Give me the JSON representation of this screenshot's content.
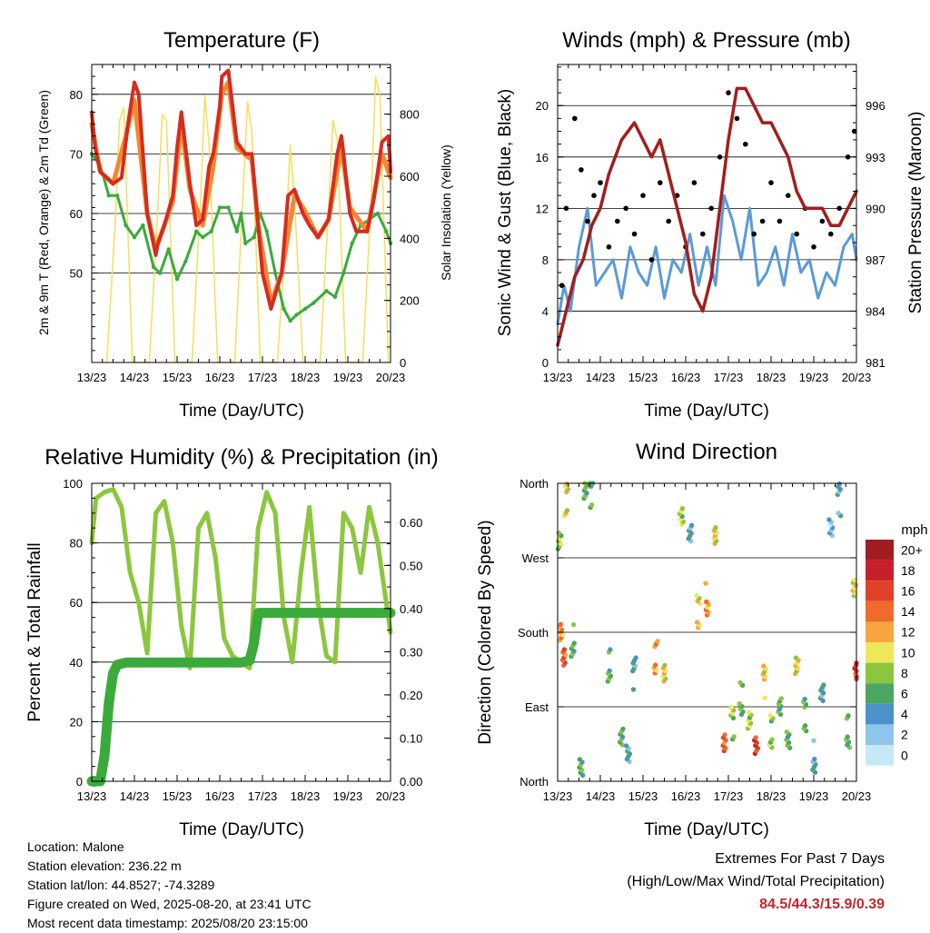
{
  "info": {
    "location": "Location: Malone",
    "elevation": "Station elevation: 236.22 m",
    "latlon": "Station lat/lon: 44.8527; -74.3289",
    "created": "Figure created on Wed, 2025-08-20, at 23:41 UTC",
    "recent": "Most recent data timestamp: 2025/08/20 23:15:00"
  },
  "extremes": {
    "line1": "Extremes For Past 7 Days",
    "line2": "(High/Low/Max Wind/Total Precipitation)",
    "values": "84.5/44.3/15.9/0.39"
  },
  "chart_data": [
    {
      "type": "line",
      "title": "Temperature (F)",
      "xlabel": "Time (Day/UTC)",
      "ylabel": "2m & 9m T (Red, Orange) & 2m Td (Green)",
      "y2label": "Solar Insolation (Yellow)",
      "x_ticks": [
        "13/23",
        "14/23",
        "15/23",
        "16/23",
        "17/23",
        "18/23",
        "19/23",
        "20/23"
      ],
      "ylim": [
        35,
        85
      ],
      "y_ticks": [
        50,
        60,
        70,
        80
      ],
      "y2lim": [
        0,
        960
      ],
      "y2_ticks": [
        0,
        200,
        400,
        600,
        800
      ],
      "grid": true,
      "colors": {
        "t2m": "#d62b1e",
        "t9m": "#f5872e",
        "td": "#3aab3a",
        "solar": "#f7dd5c"
      },
      "series": [
        {
          "key": "t2m",
          "x": [
            0,
            0.08,
            0.2,
            0.35,
            0.5,
            0.7,
            0.85,
            1.0,
            1.1,
            1.3,
            1.5,
            1.55,
            1.7,
            1.9,
            2.0,
            2.1,
            2.3,
            2.45,
            2.6,
            2.75,
            2.85,
            3.0,
            3.05,
            3.2,
            3.4,
            3.6,
            3.75,
            3.9,
            4.0,
            4.2,
            4.45,
            4.6,
            4.75,
            4.95,
            5.1,
            5.3,
            5.55,
            5.75,
            5.85,
            5.9,
            6.05,
            6.2,
            6.45,
            6.6,
            6.8,
            6.95,
            7.0
          ],
          "values": [
            77,
            71,
            67,
            66,
            65,
            66,
            75,
            82,
            80,
            60,
            53,
            55,
            58,
            63,
            71,
            77,
            65,
            58,
            59,
            68,
            70,
            78,
            83,
            84,
            72,
            70,
            70,
            58,
            50,
            44,
            50,
            63,
            64,
            60,
            58,
            56,
            59,
            70,
            73,
            70,
            60,
            57,
            57,
            62,
            72,
            73,
            67
          ]
        },
        {
          "key": "t9m",
          "x": [
            0,
            0.2,
            0.5,
            0.8,
            1.0,
            1.3,
            1.5,
            1.9,
            2.1,
            2.3,
            2.6,
            2.85,
            3.05,
            3.2,
            3.4,
            3.75,
            3.9,
            4.2,
            4.45,
            4.75,
            4.95,
            5.3,
            5.55,
            5.85,
            6.05,
            6.45,
            6.8,
            7.0
          ],
          "values": [
            75,
            67,
            65,
            73,
            79,
            60,
            54,
            62,
            75,
            64,
            58,
            68,
            80,
            82,
            71,
            69,
            58,
            45,
            50,
            63,
            61,
            56,
            59,
            71,
            61,
            57,
            70,
            66
          ]
        },
        {
          "key": "td",
          "x": [
            0,
            0.2,
            0.4,
            0.6,
            0.8,
            1.0,
            1.2,
            1.45,
            1.6,
            1.8,
            2.0,
            2.2,
            2.45,
            2.6,
            2.8,
            3.0,
            3.2,
            3.4,
            3.5,
            3.6,
            3.8,
            3.95,
            4.1,
            4.3,
            4.5,
            4.65,
            4.8,
            5.0,
            5.2,
            5.5,
            5.7,
            5.9,
            6.1,
            6.3,
            6.5,
            6.7,
            6.9,
            7.0
          ],
          "values": [
            70,
            68,
            63,
            63,
            58,
            56,
            58,
            51,
            50,
            54,
            49,
            52,
            57,
            56,
            57,
            61,
            61,
            57,
            60,
            55,
            56,
            60,
            57,
            50,
            44,
            42,
            43,
            44,
            45,
            47,
            46,
            50,
            55,
            58,
            59,
            60,
            57,
            55
          ]
        },
        {
          "key": "solar",
          "x": [
            0.35,
            0.55,
            0.65,
            0.75,
            0.95,
            1.35,
            1.55,
            1.65,
            1.75,
            1.95,
            2.35,
            2.55,
            2.65,
            2.75,
            2.95,
            3.35,
            3.55,
            3.65,
            3.75,
            3.95,
            4.35,
            4.55,
            4.65,
            4.75,
            4.95,
            5.35,
            5.55,
            5.65,
            5.75,
            5.95,
            6.35,
            6.55,
            6.65,
            6.75,
            6.95
          ],
          "values": [
            0,
            450,
            780,
            820,
            0,
            0,
            500,
            800,
            780,
            0,
            0,
            520,
            860,
            700,
            0,
            0,
            560,
            840,
            740,
            0,
            0,
            420,
            700,
            520,
            0,
            0,
            500,
            780,
            720,
            0,
            0,
            540,
            920,
            860,
            0
          ]
        }
      ]
    },
    {
      "type": "line",
      "title": "Winds (mph) & Pressure (mb)",
      "xlabel": "Time (Day/UTC)",
      "ylabel": "Sonic Wind & Gust (Blue, Black)",
      "y2label": "Station Pressure (Maroon)",
      "x_ticks": [
        "13/23",
        "14/23",
        "15/23",
        "16/23",
        "17/23",
        "18/23",
        "19/23",
        "20/23"
      ],
      "ylim": [
        0,
        23.2
      ],
      "y_ticks": [
        0,
        4,
        8,
        12,
        16,
        20
      ],
      "y2lim": [
        981,
        998.4
      ],
      "y2_ticks": [
        981,
        984,
        987,
        990,
        993,
        996
      ],
      "grid": true,
      "colors": {
        "wind": "#5b9bd5",
        "gust": "#000000",
        "pressure": "#a31d1d"
      },
      "series": [
        {
          "key": "wind",
          "x": [
            0,
            0.15,
            0.3,
            0.5,
            0.7,
            0.9,
            1.1,
            1.3,
            1.5,
            1.7,
            1.9,
            2.1,
            2.3,
            2.5,
            2.7,
            2.9,
            3.1,
            3.3,
            3.5,
            3.7,
            3.9,
            4.1,
            4.3,
            4.5,
            4.7,
            4.9,
            5.1,
            5.3,
            5.5,
            5.7,
            5.9,
            6.1,
            6.3,
            6.5,
            6.7,
            6.9,
            7.0
          ],
          "values": [
            3,
            6,
            4,
            9,
            12,
            6,
            7,
            8,
            5,
            9,
            7,
            6,
            9,
            5,
            8,
            7,
            10,
            6,
            9,
            6,
            13,
            11,
            8,
            12,
            6,
            7,
            9,
            6,
            10,
            7,
            8,
            5,
            7,
            6,
            9,
            10,
            8
          ]
        },
        {
          "key": "gust",
          "x": [
            0.1,
            0.2,
            0.4,
            0.55,
            0.7,
            0.85,
            1.0,
            1.2,
            1.4,
            1.6,
            1.8,
            2.0,
            2.2,
            2.4,
            2.6,
            2.8,
            3.0,
            3.2,
            3.4,
            3.6,
            3.8,
            4.0,
            4.2,
            4.4,
            4.6,
            4.8,
            5.0,
            5.2,
            5.4,
            5.6,
            5.8,
            6.0,
            6.2,
            6.4,
            6.6,
            6.8,
            6.95
          ],
          "values": [
            6,
            12,
            19,
            15,
            11,
            13,
            14,
            9,
            11,
            12,
            10,
            13,
            8,
            14,
            11,
            13,
            9,
            14,
            10,
            12,
            16,
            21,
            19,
            17,
            10,
            11,
            14,
            11,
            13,
            10,
            12,
            9,
            11,
            10,
            12,
            16,
            18
          ]
        },
        {
          "key": "pressure",
          "x": [
            0,
            0.2,
            0.4,
            0.6,
            0.8,
            1.0,
            1.2,
            1.5,
            1.8,
            2.0,
            2.2,
            2.4,
            2.6,
            2.8,
            3.0,
            3.2,
            3.4,
            3.6,
            3.8,
            4.0,
            4.2,
            4.4,
            4.6,
            4.8,
            5.0,
            5.2,
            5.4,
            5.6,
            5.8,
            6.0,
            6.2,
            6.4,
            6.6,
            6.8,
            7.0
          ],
          "values": [
            982,
            984,
            986,
            987,
            989,
            990,
            992,
            994,
            995,
            994,
            993,
            994,
            992,
            990,
            988,
            985,
            984,
            986,
            990,
            994,
            997,
            997,
            996,
            995,
            995,
            994,
            993,
            991,
            990,
            990,
            990,
            989,
            989,
            990,
            991
          ]
        }
      ]
    },
    {
      "type": "line",
      "title": "Relative Humidity (%) & Precipitation (in)",
      "xlabel": "Time (Day/UTC)",
      "ylabel": "Percent & Total Rainfall",
      "x_ticks": [
        "13/23",
        "14/23",
        "15/23",
        "16/23",
        "17/23",
        "18/23",
        "19/23",
        "20/23"
      ],
      "ylim": [
        0,
        100
      ],
      "y_ticks": [
        0,
        20,
        40,
        60,
        80,
        100
      ],
      "y2lim": [
        0,
        0.69
      ],
      "y2_ticks": [
        "0.00",
        "0.10",
        "0.20",
        "0.30",
        "0.40",
        "0.50",
        "0.60"
      ],
      "grid": true,
      "colors": {
        "rh": "#8cc63f",
        "precip": "#3aab3a"
      },
      "series": [
        {
          "key": "rh",
          "x": [
            0,
            0.1,
            0.3,
            0.5,
            0.7,
            0.9,
            1.1,
            1.3,
            1.5,
            1.7,
            1.9,
            2.1,
            2.3,
            2.5,
            2.7,
            2.9,
            3.1,
            3.3,
            3.5,
            3.7,
            3.9,
            4.1,
            4.3,
            4.5,
            4.7,
            4.9,
            5.1,
            5.3,
            5.5,
            5.7,
            5.9,
            6.1,
            6.3,
            6.5,
            6.7,
            6.9,
            7.0
          ],
          "values": [
            80,
            95,
            97,
            98,
            92,
            70,
            60,
            43,
            90,
            94,
            80,
            52,
            38,
            85,
            90,
            75,
            48,
            42,
            40,
            38,
            85,
            97,
            90,
            55,
            40,
            70,
            92,
            60,
            42,
            40,
            90,
            85,
            70,
            92,
            80,
            60,
            50
          ]
        },
        {
          "key": "precip",
          "x": [
            0,
            0.2,
            0.3,
            0.4,
            0.5,
            0.6,
            0.8,
            1.0,
            2.0,
            3.0,
            3.5,
            3.7,
            3.8,
            3.9,
            4.0,
            5.0,
            6.0,
            7.0
          ],
          "values": [
            0,
            0,
            0.06,
            0.18,
            0.25,
            0.27,
            0.275,
            0.275,
            0.275,
            0.275,
            0.275,
            0.28,
            0.32,
            0.39,
            0.39,
            0.39,
            0.39,
            0.39
          ]
        }
      ]
    },
    {
      "type": "scatter",
      "title": "Wind Direction",
      "xlabel": "Time (Day/UTC)",
      "ylabel": "Direction (Colored By Speed)",
      "x_ticks": [
        "13/23",
        "14/23",
        "15/23",
        "16/23",
        "17/23",
        "18/23",
        "19/23",
        "20/23"
      ],
      "y_ticks": [
        "North",
        "East",
        "South",
        "West",
        "North"
      ],
      "ylim": [
        0,
        360
      ],
      "colorbar": {
        "label": "mph",
        "ticks": [
          "20+",
          "18",
          "16",
          "14",
          "12",
          "10",
          "8",
          "6",
          "4",
          "2",
          "0"
        ],
        "colors": [
          "#a11d20",
          "#c8202a",
          "#e0412b",
          "#f06a2b",
          "#f9a441",
          "#ede85a",
          "#8cc63f",
          "#4aa661",
          "#4c91c9",
          "#8ec5ea",
          "#c6e8f7"
        ]
      },
      "clusters": [
        {
          "x": 0.05,
          "dir": 300,
          "speed": 8
        },
        {
          "x": 0.08,
          "dir": 180,
          "speed": 12
        },
        {
          "x": 0.15,
          "dir": 140,
          "speed": 14
        },
        {
          "x": 0.2,
          "dir": 340,
          "speed": 10
        },
        {
          "x": 0.35,
          "dir": 170,
          "speed": 6
        },
        {
          "x": 0.55,
          "dir": 20,
          "speed": 6
        },
        {
          "x": 0.65,
          "dir": 345,
          "speed": 6
        },
        {
          "x": 0.8,
          "dir": 350,
          "speed": 6
        },
        {
          "x": 1.2,
          "dir": 140,
          "speed": 6
        },
        {
          "x": 1.5,
          "dir": 60,
          "speed": 6
        },
        {
          "x": 1.65,
          "dir": 30,
          "speed": 4
        },
        {
          "x": 1.8,
          "dir": 130,
          "speed": 4
        },
        {
          "x": 2.3,
          "dir": 150,
          "speed": 12
        },
        {
          "x": 2.5,
          "dir": 140,
          "speed": 10
        },
        {
          "x": 2.9,
          "dir": 320,
          "speed": 8
        },
        {
          "x": 3.1,
          "dir": 290,
          "speed": 4
        },
        {
          "x": 3.3,
          "dir": 205,
          "speed": 10
        },
        {
          "x": 3.5,
          "dir": 220,
          "speed": 12
        },
        {
          "x": 3.7,
          "dir": 300,
          "speed": 10
        },
        {
          "x": 3.9,
          "dir": 40,
          "speed": 14
        },
        {
          "x": 4.1,
          "dir": 70,
          "speed": 8
        },
        {
          "x": 4.3,
          "dir": 100,
          "speed": 6
        },
        {
          "x": 4.5,
          "dir": 80,
          "speed": 8
        },
        {
          "x": 4.65,
          "dir": 40,
          "speed": 16
        },
        {
          "x": 4.85,
          "dir": 120,
          "speed": 10
        },
        {
          "x": 5.0,
          "dir": 60,
          "speed": 8
        },
        {
          "x": 5.2,
          "dir": 100,
          "speed": 6
        },
        {
          "x": 5.4,
          "dir": 50,
          "speed": 6
        },
        {
          "x": 5.6,
          "dir": 130,
          "speed": 10
        },
        {
          "x": 5.8,
          "dir": 80,
          "speed": 6
        },
        {
          "x": 6.0,
          "dir": 30,
          "speed": 4
        },
        {
          "x": 6.2,
          "dir": 110,
          "speed": 4
        },
        {
          "x": 6.4,
          "dir": 300,
          "speed": 2
        },
        {
          "x": 6.6,
          "dir": 340,
          "speed": 4
        },
        {
          "x": 6.8,
          "dir": 60,
          "speed": 6
        },
        {
          "x": 6.95,
          "dir": 240,
          "speed": 10
        },
        {
          "x": 7.0,
          "dir": 130,
          "speed": 16
        }
      ]
    }
  ]
}
